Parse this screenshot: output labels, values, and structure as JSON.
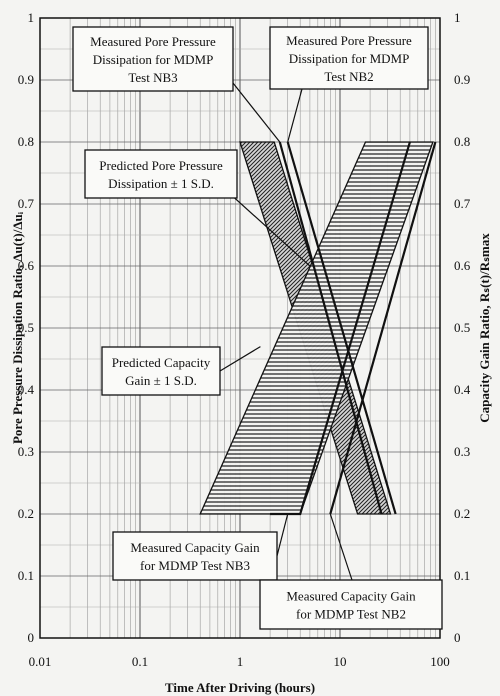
{
  "chart_data": {
    "type": "line",
    "xlabel": "Time After Driving (hours)",
    "ylabel_left": "Pore Pressure Dissipation Ratio, Δu(t)/Δuᵢ",
    "ylabel_right": "Capacity Gain Ratio, Rₛ(t)/Rₛmax",
    "x_scale": "log",
    "xlim": [
      0.01,
      100
    ],
    "ylim": [
      0,
      1
    ],
    "x_ticks": [
      "0.01",
      "0.1",
      "1",
      "10",
      "100"
    ],
    "y_ticks": [
      "0",
      "0.1",
      "0.2",
      "0.3",
      "0.4",
      "0.5",
      "0.6",
      "0.7",
      "0.8",
      "0.9",
      "1"
    ],
    "grid": true,
    "bands": [
      {
        "name": "Predicted Pore Pressure Dissipation ± 1 S.D.",
        "hatch": "diagonal",
        "polygon": [
          [
            1.0,
            0.8
          ],
          [
            2.2,
            0.8
          ],
          [
            32.0,
            0.2
          ],
          [
            15.0,
            0.2
          ]
        ]
      },
      {
        "name": "Predicted Capacity Gain ± 1 S.D.",
        "hatch": "horizontal",
        "polygon": [
          [
            0.4,
            0.2
          ],
          [
            4.0,
            0.2
          ],
          [
            85.0,
            0.8
          ],
          [
            18.0,
            0.8
          ]
        ]
      }
    ],
    "series": [
      {
        "name": "Measured Pore Pressure Dissipation for MDMP Test NB3",
        "x": [
          2.5,
          26.0
        ],
        "y": [
          0.8,
          0.2
        ]
      },
      {
        "name": "Measured Pore Pressure Dissipation for MDMP Test NB2",
        "x": [
          3.0,
          36.0
        ],
        "y": [
          0.8,
          0.2
        ]
      },
      {
        "name": "Measured Capacity Gain for MDMP Test NB3",
        "x": [
          2.0,
          4.0,
          50.0
        ],
        "y": [
          0.2,
          0.2,
          0.8
        ]
      },
      {
        "name": "Measured Capacity Gain for MDMP Test NB2",
        "x": [
          8.0,
          90.0
        ],
        "y": [
          0.2,
          0.8
        ]
      }
    ]
  },
  "annotations": {
    "pp_nb3": [
      "Measured Pore Pressure",
      "Dissipation for MDMP",
      "Test NB3"
    ],
    "pp_nb2": [
      "Measured Pore Pressure",
      "Dissipation for MDMP",
      "Test NB2"
    ],
    "pred_pp": [
      "Predicted Pore Pressure",
      "Dissipation ± 1 S.D."
    ],
    "pred_cap": [
      "Predicted Capacity",
      "Gain ± 1 S.D."
    ],
    "cap_nb3": [
      "Measured Capacity Gain",
      "for MDMP Test NB3"
    ],
    "cap_nb2": [
      "Measured Capacity Gain",
      "for MDMP Test NB2"
    ]
  }
}
